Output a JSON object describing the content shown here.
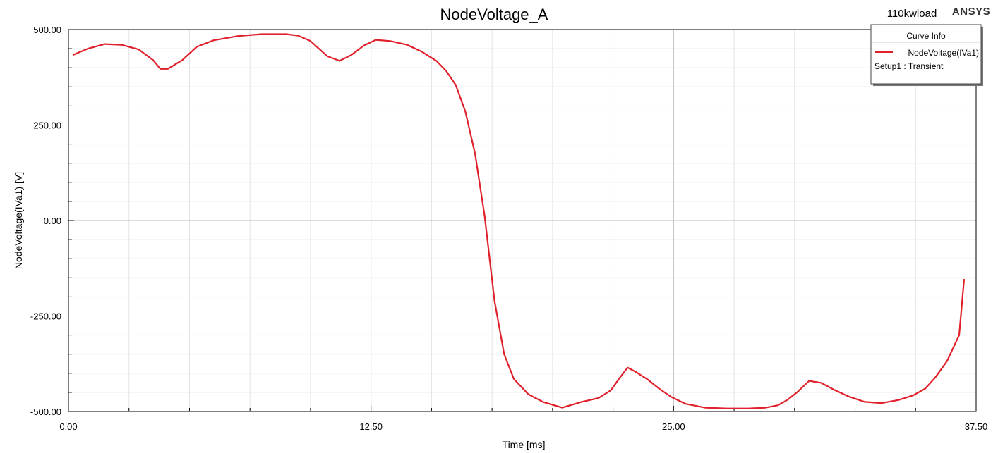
{
  "header": {
    "title": "NodeVoltage_A",
    "project": "110kwload",
    "brand": "ANSYS"
  },
  "legend": {
    "heading": "Curve Info",
    "entries": [
      {
        "name": "NodeVoltage(IVa1)",
        "color": "#e0202a"
      }
    ],
    "setup": "Setup1 : Transient",
    "placement": "top-right"
  },
  "chart_data": {
    "type": "line",
    "title": "NodeVoltage_A",
    "xlabel": "Time [ms]",
    "ylabel": "NodeVoltage(IVa1) [V]",
    "xlim": [
      0,
      37.5
    ],
    "ylim": [
      -500,
      500
    ],
    "x_ticks": [
      0,
      12.5,
      25,
      37.5
    ],
    "x_tick_labels": [
      "0.00",
      "12.50",
      "25.00",
      "37.50"
    ],
    "y_ticks": [
      500,
      250,
      0,
      -250,
      -500
    ],
    "y_tick_labels": [
      "500.00",
      "250.00",
      "0.00",
      "-250.00",
      "-500.00"
    ],
    "grid": true,
    "series": [
      {
        "name": "NodeVoltage(IVa1)",
        "color": "#e0202a",
        "x": [
          0.2,
          0.8,
          1.5,
          2.2,
          2.9,
          3.5,
          3.8,
          4.1,
          4.7,
          5.3,
          6.0,
          7.0,
          8.0,
          9.0,
          9.5,
          10.0,
          10.7,
          11.2,
          11.7,
          12.2,
          12.7,
          13.3,
          14.0,
          14.6,
          15.2,
          15.6,
          16.0,
          16.4,
          16.8,
          17.2,
          17.6,
          18.0,
          18.4,
          19.0,
          19.6,
          20.4,
          21.2,
          21.9,
          22.4,
          22.8,
          23.1,
          23.4,
          23.9,
          24.4,
          24.9,
          25.5,
          26.3,
          27.2,
          28.1,
          28.8,
          29.3,
          29.7,
          30.1,
          30.6,
          31.1,
          31.6,
          32.2,
          32.9,
          33.6,
          34.3,
          34.9,
          35.4,
          35.8,
          36.3,
          36.8,
          37.0
        ],
        "values": [
          434,
          450,
          462,
          460,
          448,
          420,
          397,
          397,
          420,
          455,
          472,
          483,
          488,
          488,
          484,
          470,
          430,
          418,
          434,
          458,
          473,
          470,
          460,
          442,
          418,
          392,
          355,
          285,
          175,
          10,
          -210,
          -350,
          -415,
          -455,
          -475,
          -490,
          -475,
          -465,
          -445,
          -410,
          -385,
          -395,
          -415,
          -440,
          -462,
          -480,
          -490,
          -492,
          -492,
          -490,
          -484,
          -470,
          -450,
          -420,
          -425,
          -442,
          -460,
          -475,
          -478,
          -470,
          -458,
          -440,
          -412,
          -368,
          -300,
          -155
        ]
      }
    ]
  }
}
